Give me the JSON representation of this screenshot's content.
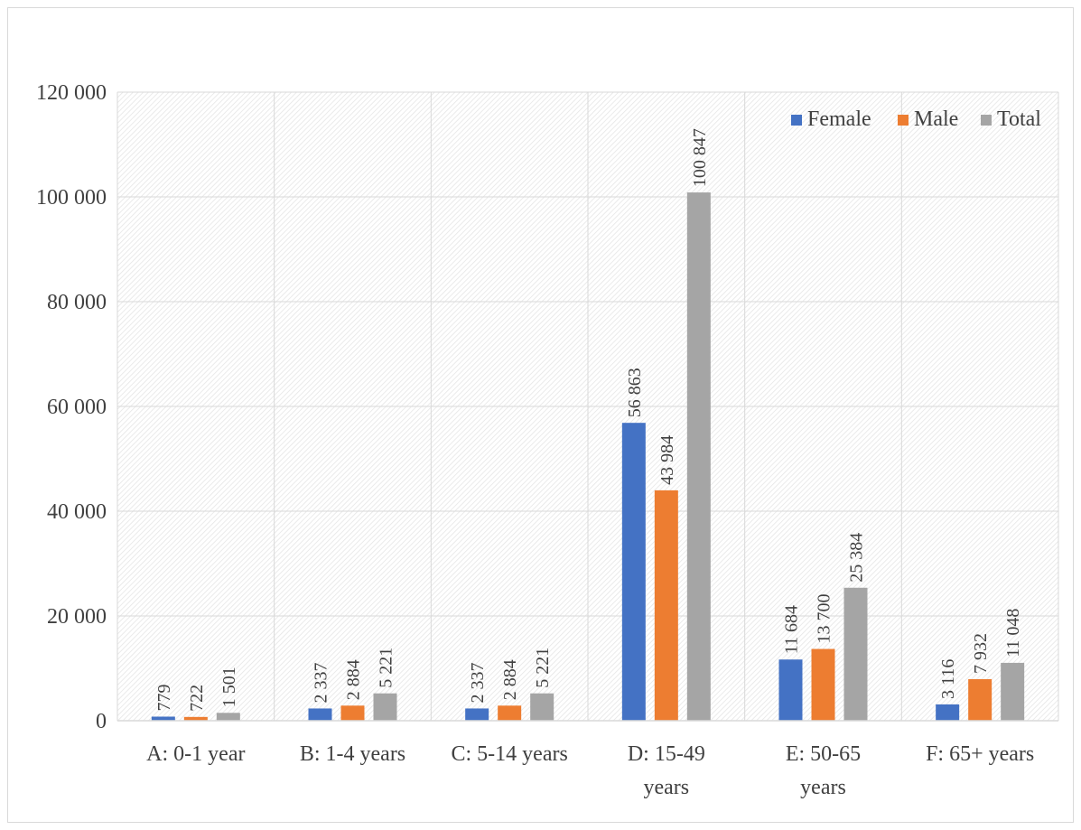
{
  "chart_data": {
    "type": "bar",
    "title": "",
    "xlabel": "",
    "ylabel": "",
    "categories": [
      [
        "A: 0-1 year"
      ],
      [
        "B: 1-4 years"
      ],
      [
        "C: 5-14 years"
      ],
      [
        "D: 15-49",
        "years"
      ],
      [
        "E: 50-65",
        "years"
      ],
      [
        "F: 65+ years"
      ]
    ],
    "series": [
      {
        "name": "Female",
        "color": "#4472c4",
        "values": [
          779,
          2337,
          2337,
          56863,
          11684,
          3116
        ],
        "labels": [
          "779",
          "2 337",
          "2 337",
          "56 863",
          "11 684",
          "3 116"
        ]
      },
      {
        "name": "Male",
        "color": "#ed7d31",
        "values": [
          722,
          2884,
          2884,
          43984,
          13700,
          7932
        ],
        "labels": [
          "722",
          "2 884",
          "2 884",
          "43 984",
          "13 700",
          "7 932"
        ]
      },
      {
        "name": "Total",
        "color": "#a5a5a5",
        "values": [
          1501,
          5221,
          5221,
          100847,
          25384,
          11048
        ],
        "labels": [
          "1 501",
          "5 221",
          "5 221",
          "100 847",
          "25 384",
          "11 048"
        ]
      }
    ],
    "ylim": [
      0,
      120000
    ],
    "yticks": [
      0,
      20000,
      40000,
      60000,
      80000,
      100000,
      120000
    ],
    "ytick_labels": [
      "0",
      "20 000",
      "40 000",
      "60 000",
      "80 000",
      "100 000",
      "120 000"
    ],
    "grid": true,
    "legend_position": "top-right"
  }
}
